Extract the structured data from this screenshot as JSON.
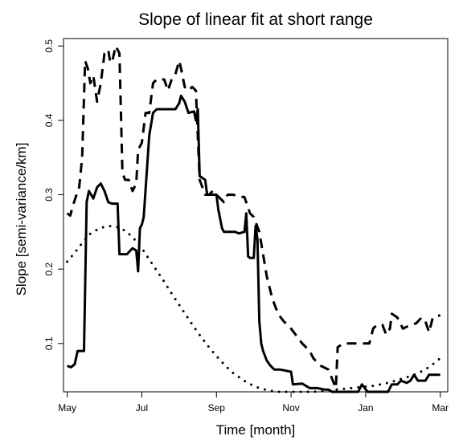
{
  "chart_data": {
    "type": "line",
    "title": "Slope of linear fit at short range",
    "xlabel": "Time [month]",
    "ylabel": "Slope [semi-variance/km]",
    "x_ticks": [
      {
        "label": "May",
        "value": 0
      },
      {
        "label": "Jul",
        "value": 2
      },
      {
        "label": "Sep",
        "value": 4
      },
      {
        "label": "Nov",
        "value": 6
      },
      {
        "label": "Jan",
        "value": 8
      },
      {
        "label": "Mar",
        "value": 10
      }
    ],
    "y_ticks": [
      0.1,
      0.2,
      0.3,
      0.4,
      0.5
    ],
    "xlim": [
      -0.1,
      10.2
    ],
    "ylim": [
      0.035,
      0.51
    ],
    "grid": false,
    "series": [
      {
        "style": "solid",
        "points": [
          [
            0,
            0.07
          ],
          [
            0.1,
            0.068
          ],
          [
            0.2,
            0.072
          ],
          [
            0.28,
            0.09
          ],
          [
            0.45,
            0.09
          ],
          [
            0.52,
            0.29
          ],
          [
            0.58,
            0.305
          ],
          [
            0.7,
            0.295
          ],
          [
            0.8,
            0.31
          ],
          [
            0.9,
            0.315
          ],
          [
            1.0,
            0.305
          ],
          [
            1.1,
            0.29
          ],
          [
            1.2,
            0.288
          ],
          [
            1.35,
            0.288
          ],
          [
            1.4,
            0.22
          ],
          [
            1.6,
            0.22
          ],
          [
            1.75,
            0.228
          ],
          [
            1.85,
            0.225
          ],
          [
            1.9,
            0.197
          ],
          [
            1.95,
            0.255
          ],
          [
            2.0,
            0.26
          ],
          [
            2.05,
            0.27
          ],
          [
            2.2,
            0.38
          ],
          [
            2.3,
            0.41
          ],
          [
            2.4,
            0.415
          ],
          [
            2.6,
            0.415
          ],
          [
            2.9,
            0.415
          ],
          [
            3.0,
            0.423
          ],
          [
            3.05,
            0.433
          ],
          [
            3.15,
            0.425
          ],
          [
            3.25,
            0.41
          ],
          [
            3.4,
            0.412
          ],
          [
            3.45,
            0.4
          ],
          [
            3.5,
            0.415
          ],
          [
            3.55,
            0.325
          ],
          [
            3.7,
            0.32
          ],
          [
            3.75,
            0.3
          ],
          [
            4.0,
            0.3
          ],
          [
            4.05,
            0.28
          ],
          [
            4.15,
            0.255
          ],
          [
            4.2,
            0.25
          ],
          [
            4.5,
            0.25
          ],
          [
            4.6,
            0.248
          ],
          [
            4.75,
            0.25
          ],
          [
            4.8,
            0.275
          ],
          [
            4.85,
            0.217
          ],
          [
            4.9,
            0.215
          ],
          [
            5.0,
            0.215
          ],
          [
            5.05,
            0.258
          ],
          [
            5.1,
            0.24
          ],
          [
            5.15,
            0.13
          ],
          [
            5.2,
            0.1
          ],
          [
            5.25,
            0.09
          ],
          [
            5.35,
            0.077
          ],
          [
            5.45,
            0.07
          ],
          [
            5.55,
            0.065
          ],
          [
            5.7,
            0.065
          ],
          [
            6.0,
            0.062
          ],
          [
            6.05,
            0.045
          ],
          [
            6.3,
            0.046
          ],
          [
            6.5,
            0.04
          ],
          [
            6.7,
            0.04
          ],
          [
            6.9,
            0.038
          ],
          [
            7.0,
            0.038
          ],
          [
            7.1,
            0.03
          ],
          [
            7.8,
            0.035
          ],
          [
            7.9,
            0.045
          ],
          [
            8.05,
            0.03
          ],
          [
            8.6,
            0.03
          ],
          [
            8.7,
            0.045
          ],
          [
            8.85,
            0.045
          ],
          [
            8.95,
            0.05
          ],
          [
            9.1,
            0.047
          ],
          [
            9.2,
            0.05
          ],
          [
            9.3,
            0.058
          ],
          [
            9.4,
            0.05
          ],
          [
            9.6,
            0.05
          ],
          [
            9.7,
            0.058
          ],
          [
            10.0,
            0.058
          ]
        ]
      },
      {
        "style": "dashed",
        "points": [
          [
            0,
            0.275
          ],
          [
            0.08,
            0.272
          ],
          [
            0.15,
            0.285
          ],
          [
            0.25,
            0.3
          ],
          [
            0.32,
            0.31
          ],
          [
            0.4,
            0.35
          ],
          [
            0.48,
            0.48
          ],
          [
            0.55,
            0.47
          ],
          [
            0.62,
            0.45
          ],
          [
            0.7,
            0.46
          ],
          [
            0.8,
            0.425
          ],
          [
            0.9,
            0.45
          ],
          [
            1.0,
            0.49
          ],
          [
            1.1,
            0.495
          ],
          [
            1.15,
            0.478
          ],
          [
            1.2,
            0.478
          ],
          [
            1.3,
            0.5
          ],
          [
            1.4,
            0.49
          ],
          [
            1.48,
            0.33
          ],
          [
            1.55,
            0.32
          ],
          [
            1.65,
            0.32
          ],
          [
            1.75,
            0.305
          ],
          [
            1.85,
            0.315
          ],
          [
            1.9,
            0.36
          ],
          [
            2.0,
            0.37
          ],
          [
            2.1,
            0.41
          ],
          [
            2.2,
            0.41
          ],
          [
            2.3,
            0.45
          ],
          [
            2.4,
            0.455
          ],
          [
            2.6,
            0.455
          ],
          [
            2.7,
            0.44
          ],
          [
            2.8,
            0.455
          ],
          [
            2.9,
            0.462
          ],
          [
            3.0,
            0.48
          ],
          [
            3.05,
            0.47
          ],
          [
            3.15,
            0.445
          ],
          [
            3.25,
            0.44
          ],
          [
            3.35,
            0.445
          ],
          [
            3.45,
            0.44
          ],
          [
            3.55,
            0.32
          ],
          [
            3.7,
            0.3
          ],
          [
            3.8,
            0.3
          ],
          [
            3.9,
            0.305
          ],
          [
            4.0,
            0.3
          ],
          [
            4.2,
            0.29
          ],
          [
            4.3,
            0.3
          ],
          [
            4.45,
            0.3
          ],
          [
            4.6,
            0.297
          ],
          [
            4.75,
            0.297
          ],
          [
            4.9,
            0.275
          ],
          [
            5.0,
            0.27
          ],
          [
            5.15,
            0.25
          ],
          [
            5.25,
            0.22
          ],
          [
            5.35,
            0.19
          ],
          [
            5.5,
            0.16
          ],
          [
            5.65,
            0.14
          ],
          [
            5.8,
            0.13
          ],
          [
            6.0,
            0.12
          ],
          [
            6.15,
            0.11
          ],
          [
            6.3,
            0.1
          ],
          [
            6.5,
            0.09
          ],
          [
            6.6,
            0.08
          ],
          [
            6.8,
            0.07
          ],
          [
            7.0,
            0.065
          ],
          [
            7.2,
            0.04
          ],
          [
            7.25,
            0.095
          ],
          [
            7.4,
            0.1
          ],
          [
            7.6,
            0.1
          ],
          [
            7.8,
            0.1
          ],
          [
            8.0,
            0.1
          ],
          [
            8.1,
            0.1
          ],
          [
            8.2,
            0.12
          ],
          [
            8.3,
            0.125
          ],
          [
            8.45,
            0.125
          ],
          [
            8.55,
            0.112
          ],
          [
            8.65,
            0.12
          ],
          [
            8.7,
            0.14
          ],
          [
            8.85,
            0.135
          ],
          [
            9.0,
            0.12
          ],
          [
            9.2,
            0.125
          ],
          [
            9.35,
            0.127
          ],
          [
            9.5,
            0.135
          ],
          [
            9.6,
            0.13
          ],
          [
            9.7,
            0.115
          ],
          [
            9.8,
            0.135
          ],
          [
            10.0,
            0.138
          ]
        ]
      },
      {
        "style": "dotted",
        "points": [
          [
            0,
            0.21
          ],
          [
            0.2,
            0.222
          ],
          [
            0.4,
            0.235
          ],
          [
            0.6,
            0.247
          ],
          [
            0.8,
            0.253
          ],
          [
            1.0,
            0.257
          ],
          [
            1.2,
            0.258
          ],
          [
            1.4,
            0.256
          ],
          [
            1.6,
            0.25
          ],
          [
            1.8,
            0.24
          ],
          [
            2.0,
            0.228
          ],
          [
            2.2,
            0.213
          ],
          [
            2.4,
            0.198
          ],
          [
            2.6,
            0.183
          ],
          [
            2.8,
            0.167
          ],
          [
            3.0,
            0.152
          ],
          [
            3.2,
            0.137
          ],
          [
            3.4,
            0.122
          ],
          [
            3.6,
            0.108
          ],
          [
            3.8,
            0.095
          ],
          [
            4.0,
            0.083
          ],
          [
            4.2,
            0.072
          ],
          [
            4.4,
            0.062
          ],
          [
            4.6,
            0.055
          ],
          [
            4.8,
            0.048
          ],
          [
            5.0,
            0.043
          ],
          [
            5.2,
            0.039
          ],
          [
            5.4,
            0.037
          ],
          [
            5.6,
            0.035
          ],
          [
            5.8,
            0.034
          ],
          [
            6.0,
            0.033
          ],
          [
            6.2,
            0.033
          ],
          [
            6.4,
            0.034
          ],
          [
            6.6,
            0.035
          ],
          [
            6.8,
            0.036
          ],
          [
            7.0,
            0.037
          ],
          [
            7.2,
            0.038
          ],
          [
            7.4,
            0.039
          ],
          [
            7.6,
            0.04
          ],
          [
            7.8,
            0.041
          ],
          [
            8.0,
            0.042
          ],
          [
            8.2,
            0.043
          ],
          [
            8.4,
            0.045
          ],
          [
            8.6,
            0.047
          ],
          [
            8.8,
            0.05
          ],
          [
            9.0,
            0.053
          ],
          [
            9.2,
            0.056
          ],
          [
            9.4,
            0.06
          ],
          [
            9.6,
            0.065
          ],
          [
            9.8,
            0.072
          ],
          [
            10.0,
            0.08
          ]
        ]
      }
    ]
  }
}
